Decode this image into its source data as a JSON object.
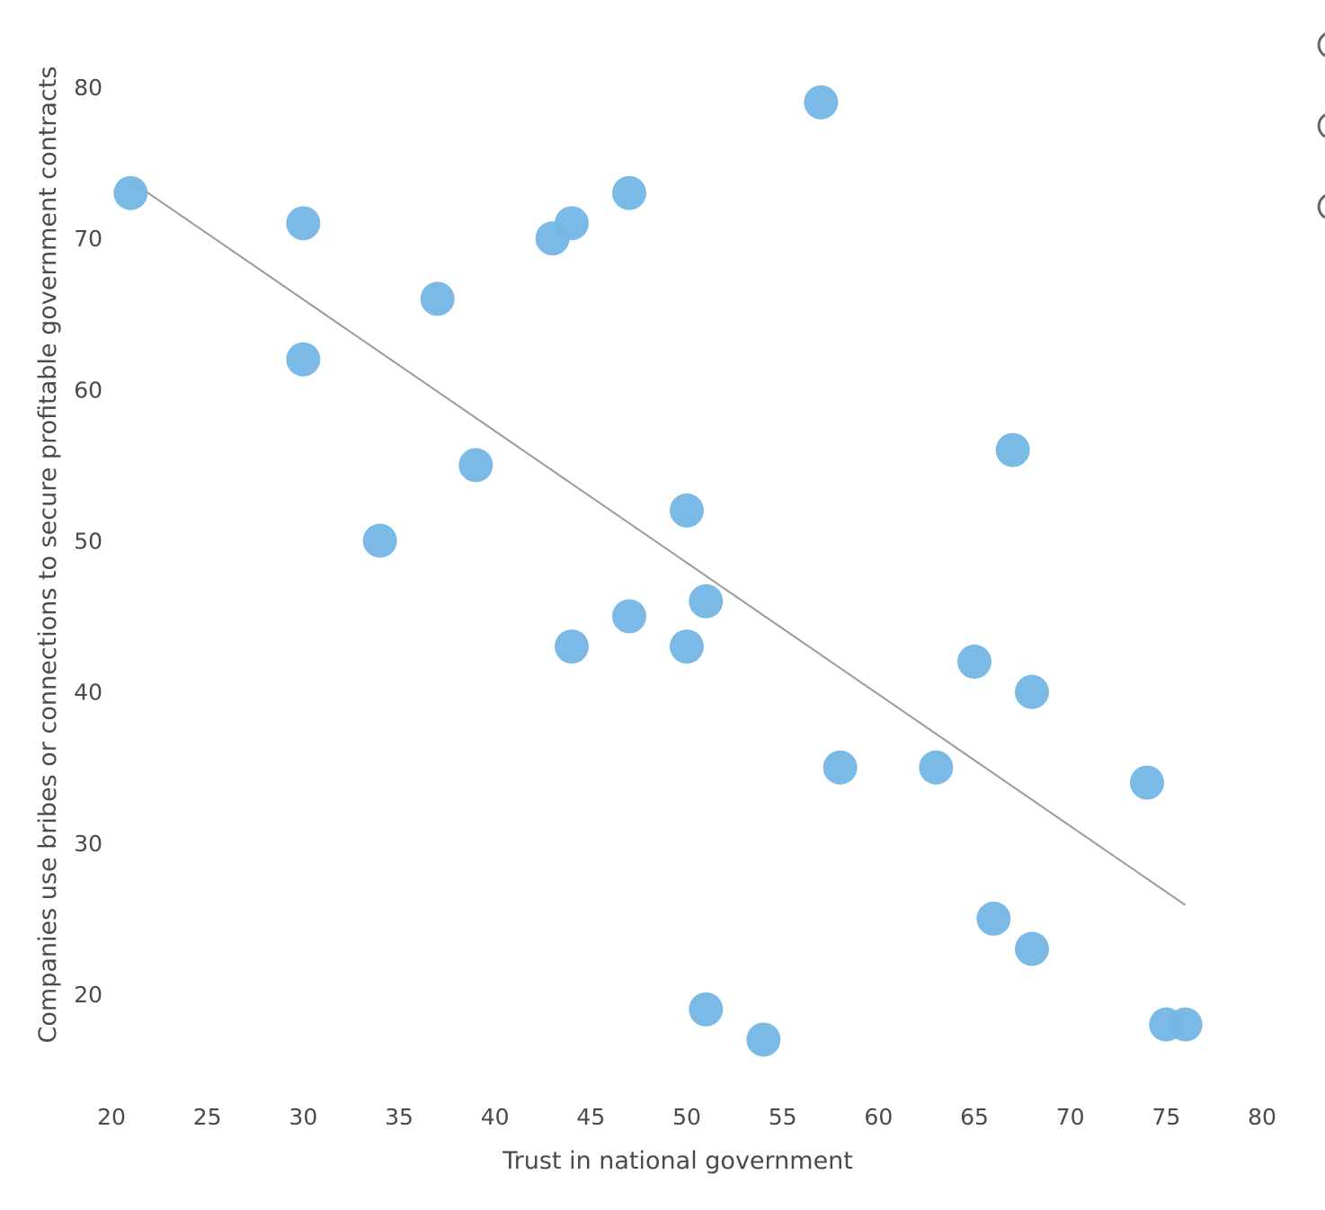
{
  "chart_data": {
    "type": "scatter",
    "xlabel": "Trust in national government",
    "ylabel": "Companies use bribes or connections to secure profitable government contracts",
    "xlim": [
      20,
      80
    ],
    "ylim": [
      13.5,
      82
    ],
    "x_ticks": [
      20,
      25,
      30,
      35,
      40,
      45,
      50,
      55,
      60,
      65,
      70,
      75,
      80
    ],
    "y_ticks": [
      20,
      30,
      40,
      50,
      60,
      70,
      80
    ],
    "grid": false,
    "point_color": "#74b6e6",
    "trendline_color": "#9a9a9a",
    "series": [
      {
        "points": [
          {
            "x": 21,
            "y": 73
          },
          {
            "x": 30,
            "y": 71
          },
          {
            "x": 30,
            "y": 62
          },
          {
            "x": 34,
            "y": 50
          },
          {
            "x": 37,
            "y": 66
          },
          {
            "x": 39,
            "y": 55
          },
          {
            "x": 43,
            "y": 70
          },
          {
            "x": 44,
            "y": 71
          },
          {
            "x": 44,
            "y": 43
          },
          {
            "x": 47,
            "y": 73
          },
          {
            "x": 47,
            "y": 45
          },
          {
            "x": 50,
            "y": 52
          },
          {
            "x": 50,
            "y": 43
          },
          {
            "x": 51,
            "y": 46
          },
          {
            "x": 51,
            "y": 19
          },
          {
            "x": 54,
            "y": 17
          },
          {
            "x": 57,
            "y": 79
          },
          {
            "x": 58,
            "y": 35
          },
          {
            "x": 63,
            "y": 35
          },
          {
            "x": 65,
            "y": 42
          },
          {
            "x": 66,
            "y": 25
          },
          {
            "x": 67,
            "y": 56
          },
          {
            "x": 68,
            "y": 40
          },
          {
            "x": 68,
            "y": 23
          },
          {
            "x": 74,
            "y": 34
          },
          {
            "x": 75,
            "y": 18
          },
          {
            "x": 76,
            "y": 18
          }
        ]
      }
    ],
    "trendline": {
      "start": {
        "x": 21,
        "y": 73.8
      },
      "end": {
        "x": 76,
        "y": 25.9
      }
    }
  }
}
